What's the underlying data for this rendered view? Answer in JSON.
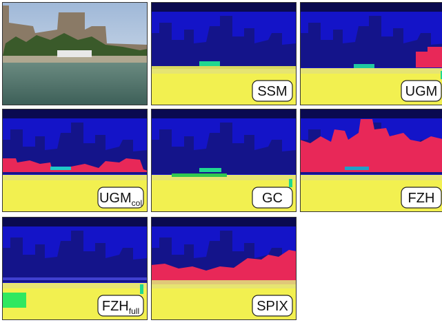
{
  "panels": [
    {
      "label": null
    },
    {
      "label": "SSM"
    },
    {
      "label": "UGM"
    },
    {
      "label": "UGM",
      "subscript": "col"
    },
    {
      "label": "GC"
    },
    {
      "label": "FZH"
    },
    {
      "label": "FZH",
      "subscript": "full"
    },
    {
      "label": "SPIX"
    }
  ]
}
